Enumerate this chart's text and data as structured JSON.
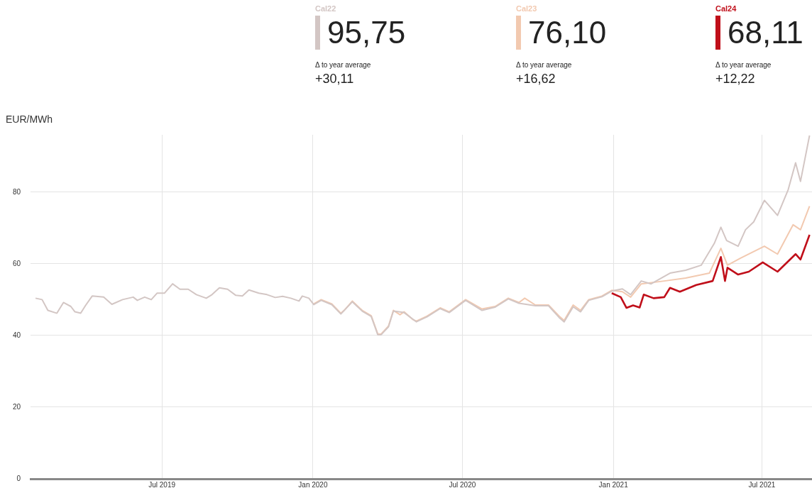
{
  "chart_data": {
    "type": "line",
    "ylabel": "EUR/MWh",
    "legend": "top",
    "grid": true,
    "marker": "none",
    "line_style": "solid",
    "xlim": [
      "2019-01-22",
      "2021-08-31"
    ],
    "ylim": [
      0,
      96
    ],
    "xticks": [
      {
        "value": "2019-07-01",
        "label": "Jul 2019"
      },
      {
        "value": "2020-01-01",
        "label": "Jan 2020"
      },
      {
        "value": "2020-07-01",
        "label": "Jul 2020"
      },
      {
        "value": "2021-01-01",
        "label": "Jan 2021"
      },
      {
        "value": "2021-07-01",
        "label": "Jul 2021"
      }
    ],
    "yticks": [
      0,
      20,
      40,
      60,
      80
    ],
    "annotations": [
      "95,75",
      "Δ to year average",
      "+30,11",
      "76,10",
      "Δ to year average",
      "+16,62",
      "68,11",
      "Δ to year average",
      "+12,22"
    ],
    "series": [
      {
        "name": "Cal22",
        "color": "#d3c6c4",
        "x": [
          "2019-01-28",
          "2019-02-05",
          "2019-02-12",
          "2019-02-23",
          "2019-03-03",
          "2019-03-12",
          "2019-03-17",
          "2019-03-24",
          "2019-03-30",
          "2019-04-07",
          "2019-04-21",
          "2019-05-01",
          "2019-05-14",
          "2019-05-27",
          "2019-06-01",
          "2019-06-10",
          "2019-06-18",
          "2019-06-25",
          "2019-07-04",
          "2019-07-14",
          "2019-07-23",
          "2019-08-02",
          "2019-08-12",
          "2019-08-24",
          "2019-08-31",
          "2019-09-09",
          "2019-09-19",
          "2019-09-29",
          "2019-10-07",
          "2019-10-15",
          "2019-10-27",
          "2019-11-06",
          "2019-11-16",
          "2019-11-25",
          "2019-12-05",
          "2019-12-15",
          "2019-12-19",
          "2019-12-27",
          "2020-01-02",
          "2020-01-11",
          "2020-01-24",
          "2020-02-04",
          "2020-02-18",
          "2020-03-01",
          "2020-03-12",
          "2020-03-20",
          "2020-03-24",
          "2020-04-02",
          "2020-04-08",
          "2020-04-21",
          "2020-05-06",
          "2020-05-19",
          "2020-06-04",
          "2020-06-15",
          "2020-07-05",
          "2020-07-25",
          "2020-08-10",
          "2020-08-26",
          "2020-09-08",
          "2020-09-28",
          "2020-10-14",
          "2020-10-27",
          "2020-11-02",
          "2020-11-13",
          "2020-11-22",
          "2020-12-02",
          "2020-12-18",
          "2020-12-30",
          "2021-01-12",
          "2021-01-22",
          "2021-02-04",
          "2021-02-16",
          "2021-03-11",
          "2021-03-30",
          "2021-04-18",
          "2021-05-04",
          "2021-05-12",
          "2021-05-19",
          "2021-06-02",
          "2021-06-11",
          "2021-06-21",
          "2021-07-04",
          "2021-07-20",
          "2021-08-02",
          "2021-08-11",
          "2021-08-17",
          "2021-08-28"
        ],
        "values": [
          50.4,
          50,
          47,
          46.2,
          49.2,
          48.1,
          46.6,
          46.2,
          48.4,
          51,
          50.7,
          48.7,
          50,
          50.7,
          49.8,
          50.7,
          50,
          51.8,
          51.8,
          54.4,
          52.9,
          52.9,
          51.4,
          50.4,
          51.4,
          53.3,
          52.9,
          51.2,
          51,
          52.7,
          51.8,
          51.4,
          50.6,
          50.9,
          50.4,
          49.6,
          51,
          50.4,
          48.6,
          49.8,
          48.6,
          46,
          49.4,
          46.8,
          45.3,
          40.2,
          40.2,
          42.4,
          46.8,
          46.4,
          43.8,
          45.2,
          47.5,
          46.4,
          49.8,
          47,
          47.9,
          50.2,
          49,
          48.3,
          48.3,
          45,
          43.8,
          48,
          46.6,
          49.8,
          50.8,
          52.4,
          53,
          51.4,
          55.2,
          54.4,
          57.4,
          58.2,
          59.6,
          65.7,
          70.2,
          66.5,
          64.9,
          69.5,
          71.7,
          77.7,
          73.5,
          80.7,
          88.2,
          83,
          95.8
        ]
      },
      {
        "name": "Cal23",
        "color": "#f2c9b0",
        "x": [
          "2020-01-02",
          "2020-01-11",
          "2020-01-24",
          "2020-02-04",
          "2020-02-08",
          "2020-02-18",
          "2020-03-01",
          "2020-03-12",
          "2020-03-20",
          "2020-03-24",
          "2020-04-02",
          "2020-04-08",
          "2020-04-16",
          "2020-04-21",
          "2020-05-02",
          "2020-05-06",
          "2020-05-19",
          "2020-06-04",
          "2020-06-15",
          "2020-07-05",
          "2020-07-25",
          "2020-08-10",
          "2020-08-26",
          "2020-09-08",
          "2020-09-15",
          "2020-09-28",
          "2020-10-14",
          "2020-10-27",
          "2020-11-02",
          "2020-11-13",
          "2020-11-22",
          "2020-12-02",
          "2020-12-18",
          "2020-12-30",
          "2021-01-12",
          "2021-01-22",
          "2021-02-04",
          "2021-03-04",
          "2021-03-30",
          "2021-04-28",
          "2021-05-12",
          "2021-05-20",
          "2021-06-05",
          "2021-07-04",
          "2021-07-20",
          "2021-08-08",
          "2021-08-17",
          "2021-08-28"
        ],
        "values": [
          48.8,
          50,
          48.8,
          46.2,
          47,
          49.6,
          47,
          45.5,
          40.4,
          40.4,
          42.6,
          47,
          45.8,
          46.6,
          44.4,
          44,
          45.4,
          47.7,
          46.6,
          50,
          47.4,
          48.1,
          50.4,
          49.2,
          50.4,
          48.5,
          48.5,
          45.4,
          44.2,
          48.5,
          47,
          50,
          51,
          52.6,
          52.2,
          50.7,
          54.4,
          55.2,
          56,
          57.4,
          64.3,
          59.6,
          61.6,
          64.9,
          62.7,
          70.9,
          69.5,
          76.1
        ]
      },
      {
        "name": "Cal24",
        "color": "#c00f1a",
        "x": [
          "2020-12-30",
          "2021-01-10",
          "2021-01-17",
          "2021-01-25",
          "2021-02-02",
          "2021-02-07",
          "2021-02-19",
          "2021-03-04",
          "2021-03-11",
          "2021-03-23",
          "2021-04-12",
          "2021-05-02",
          "2021-05-12",
          "2021-05-17",
          "2021-05-20",
          "2021-06-02",
          "2021-06-15",
          "2021-07-02",
          "2021-07-20",
          "2021-08-11",
          "2021-08-17",
          "2021-08-28"
        ],
        "values": [
          51.8,
          50.7,
          47.7,
          48.4,
          47.8,
          51.4,
          50.4,
          50.7,
          53.3,
          52.2,
          54.1,
          55.2,
          61.9,
          55.2,
          58.9,
          57,
          57.8,
          60.4,
          57.8,
          62.7,
          61.2,
          68.1
        ]
      }
    ]
  }
}
